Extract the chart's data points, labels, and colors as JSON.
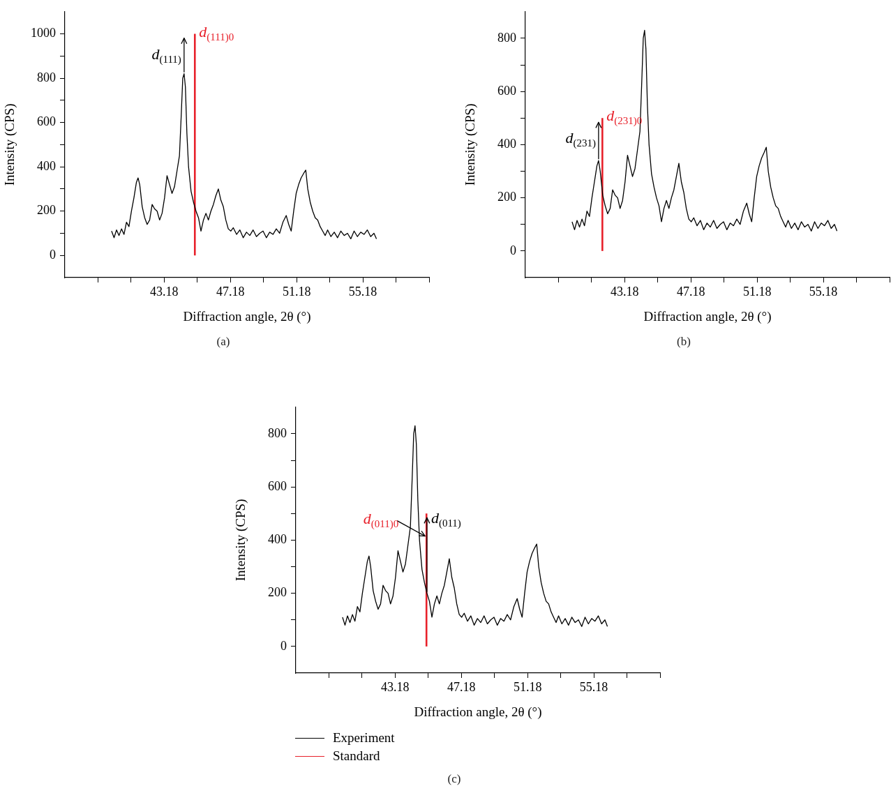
{
  "chart_data": [
    {
      "type": "line",
      "title": "(a)",
      "xlabel": "Diffraction angle, 2θ (°)",
      "ylabel": "Intensity (CPS)",
      "xlim": [
        37.18,
        59.18
      ],
      "ylim": [
        -100,
        1100
      ],
      "xticks": [
        {
          "value": 39.18,
          "label": null
        },
        {
          "value": 41.18,
          "label": null
        },
        43.18,
        {
          "value": 45.18,
          "label": null
        },
        47.18,
        {
          "value": 49.18,
          "label": null
        },
        51.18,
        {
          "value": 53.18,
          "label": null
        },
        55.18,
        {
          "value": 57.18,
          "label": null
        },
        {
          "value": 59.18,
          "label": null
        }
      ],
      "yticks": [
        0,
        {
          "value": 100,
          "label": null
        },
        200,
        {
          "value": 300,
          "label": null
        },
        400,
        {
          "value": 500,
          "label": null
        },
        600,
        {
          "value": 700,
          "label": null
        },
        800,
        {
          "value": 900,
          "label": null
        },
        1000
      ],
      "grid": false,
      "legend": false,
      "series": [
        {
          "color": "#000000",
          "x": [
            40.0,
            40.15,
            40.3,
            40.45,
            40.6,
            40.75,
            40.9,
            41.05,
            41.2,
            41.35,
            41.5,
            41.6,
            41.7,
            41.85,
            42.0,
            42.15,
            42.3,
            42.45,
            42.6,
            42.75,
            42.9,
            43.05,
            43.2,
            43.35,
            43.5,
            43.65,
            43.8,
            43.95,
            44.1,
            44.2,
            44.3,
            44.38,
            44.46,
            44.55,
            44.65,
            44.8,
            44.95,
            45.1,
            45.25,
            45.4,
            45.55,
            45.7,
            45.85,
            46.0,
            46.15,
            46.3,
            46.45,
            46.6,
            46.75,
            46.9,
            47.05,
            47.2,
            47.35,
            47.55,
            47.75,
            47.95,
            48.15,
            48.35,
            48.55,
            48.75,
            48.95,
            49.15,
            49.35,
            49.55,
            49.75,
            49.95,
            50.15,
            50.35,
            50.55,
            50.7,
            50.85,
            51.0,
            51.15,
            51.3,
            51.45,
            51.6,
            51.73,
            51.85,
            52.0,
            52.15,
            52.3,
            52.45,
            52.6,
            52.75,
            52.9,
            53.05,
            53.25,
            53.45,
            53.65,
            53.85,
            54.05,
            54.25,
            54.45,
            54.65,
            54.85,
            55.05,
            55.25,
            55.45,
            55.65,
            55.85,
            56.0
          ],
          "values": [
            110,
            80,
            115,
            90,
            120,
            95,
            150,
            130,
            200,
            260,
            330,
            350,
            320,
            220,
            170,
            140,
            160,
            230,
            210,
            200,
            160,
            190,
            260,
            360,
            320,
            280,
            310,
            380,
            450,
            620,
            800,
            820,
            760,
            550,
            400,
            290,
            240,
            200,
            170,
            110,
            160,
            190,
            160,
            200,
            230,
            270,
            300,
            250,
            220,
            160,
            120,
            110,
            125,
            95,
            115,
            80,
            105,
            90,
            115,
            85,
            100,
            110,
            80,
            105,
            95,
            120,
            100,
            150,
            180,
            140,
            110,
            200,
            280,
            320,
            350,
            370,
            385,
            300,
            240,
            200,
            170,
            160,
            130,
            110,
            90,
            115,
            85,
            105,
            80,
            110,
            90,
            100,
            75,
            110,
            85,
            105,
            95,
            115,
            85,
            100,
            75
          ]
        },
        {
          "color": "#e8202a",
          "x": [
            45.03,
            45.03
          ],
          "values": [
            0,
            1000
          ]
        }
      ],
      "annotations": [
        {
          "text": "d$_{(111)}$",
          "x": 44.38,
          "y": 820
        },
        {
          "text": "d$_{(111)0}$",
          "x": 45.03,
          "y": 1000
        }
      ]
    },
    {
      "type": "line",
      "title": "(b)",
      "xlabel": "Diffraction angle, 2θ (°)",
      "ylabel": "Intensity (CPS)",
      "xlim": [
        37.18,
        59.18
      ],
      "ylim": [
        -100,
        900
      ],
      "xticks": [
        {
          "value": 39.18,
          "label": null
        },
        {
          "value": 41.18,
          "label": null
        },
        43.18,
        {
          "value": 45.18,
          "label": null
        },
        47.18,
        {
          "value": 49.18,
          "label": null
        },
        51.18,
        {
          "value": 53.18,
          "label": null
        },
        55.18,
        {
          "value": 57.18,
          "label": null
        },
        {
          "value": 59.18,
          "label": null
        }
      ],
      "yticks": [
        0,
        {
          "value": 100,
          "label": null
        },
        200,
        {
          "value": 300,
          "label": null
        },
        400,
        {
          "value": 500,
          "label": null
        },
        600,
        {
          "value": 700,
          "label": null
        },
        800
      ],
      "grid": false,
      "legend": false,
      "series": [
        {
          "color": "#000000",
          "x": [
            40.0,
            40.15,
            40.3,
            40.45,
            40.6,
            40.75,
            40.9,
            41.05,
            41.2,
            41.35,
            41.5,
            41.6,
            41.7,
            41.85,
            42.0,
            42.15,
            42.3,
            42.45,
            42.6,
            42.75,
            42.9,
            43.05,
            43.2,
            43.35,
            43.5,
            43.65,
            43.8,
            43.95,
            44.1,
            44.2,
            44.3,
            44.38,
            44.46,
            44.55,
            44.65,
            44.8,
            44.95,
            45.1,
            45.25,
            45.4,
            45.55,
            45.7,
            45.85,
            46.0,
            46.15,
            46.3,
            46.45,
            46.6,
            46.75,
            46.9,
            47.05,
            47.2,
            47.35,
            47.55,
            47.75,
            47.95,
            48.15,
            48.35,
            48.55,
            48.75,
            48.95,
            49.15,
            49.35,
            49.55,
            49.75,
            49.95,
            50.15,
            50.35,
            50.55,
            50.7,
            50.85,
            51.0,
            51.15,
            51.3,
            51.45,
            51.6,
            51.73,
            51.85,
            52.0,
            52.15,
            52.3,
            52.45,
            52.6,
            52.75,
            52.9,
            53.05,
            53.25,
            53.45,
            53.65,
            53.85,
            54.05,
            54.25,
            54.45,
            54.65,
            54.85,
            55.05,
            55.25,
            55.45,
            55.65,
            55.85,
            56.0
          ],
          "values": [
            110,
            80,
            115,
            90,
            120,
            95,
            150,
            130,
            200,
            260,
            320,
            340,
            300,
            210,
            170,
            140,
            160,
            230,
            210,
            200,
            160,
            190,
            260,
            360,
            320,
            280,
            310,
            380,
            450,
            620,
            800,
            830,
            760,
            550,
            400,
            290,
            240,
            200,
            170,
            110,
            160,
            190,
            160,
            200,
            230,
            280,
            330,
            260,
            220,
            160,
            120,
            110,
            125,
            95,
            115,
            80,
            105,
            90,
            115,
            85,
            100,
            110,
            80,
            105,
            95,
            120,
            100,
            150,
            180,
            140,
            110,
            200,
            280,
            320,
            350,
            370,
            390,
            300,
            240,
            200,
            170,
            160,
            130,
            110,
            90,
            115,
            85,
            105,
            80,
            110,
            90,
            100,
            75,
            110,
            85,
            105,
            95,
            115,
            85,
            100,
            75
          ]
        },
        {
          "color": "#e8202a",
          "x": [
            41.83,
            41.83
          ],
          "values": [
            0,
            500
          ]
        }
      ],
      "annotations": [
        {
          "text": "d$_{(231)}$",
          "x": 41.6,
          "y": 340
        },
        {
          "text": "d$_{(231)0}$",
          "x": 41.83,
          "y": 500
        }
      ]
    },
    {
      "type": "line",
      "title": "(c)",
      "xlabel": "Diffraction angle, 2θ (°)",
      "ylabel": "Intensity (CPS)",
      "xlim": [
        37.18,
        59.18
      ],
      "ylim": [
        -100,
        900
      ],
      "xticks": [
        {
          "value": 39.18,
          "label": null
        },
        {
          "value": 41.18,
          "label": null
        },
        43.18,
        {
          "value": 45.18,
          "label": null
        },
        47.18,
        {
          "value": 49.18,
          "label": null
        },
        51.18,
        {
          "value": 53.18,
          "label": null
        },
        55.18,
        {
          "value": 57.18,
          "label": null
        },
        {
          "value": 59.18,
          "label": null
        }
      ],
      "yticks": [
        0,
        {
          "value": 100,
          "label": null
        },
        200,
        {
          "value": 300,
          "label": null
        },
        400,
        {
          "value": 500,
          "label": null
        },
        600,
        {
          "value": 700,
          "label": null
        },
        800
      ],
      "grid": false,
      "legend": "bottom",
      "series": [
        {
          "name": "Experiment",
          "color": "#000000",
          "x": [
            40.0,
            40.15,
            40.3,
            40.45,
            40.6,
            40.75,
            40.9,
            41.05,
            41.2,
            41.35,
            41.5,
            41.6,
            41.7,
            41.85,
            42.0,
            42.15,
            42.3,
            42.45,
            42.6,
            42.75,
            42.9,
            43.05,
            43.2,
            43.35,
            43.5,
            43.65,
            43.8,
            43.95,
            44.1,
            44.2,
            44.3,
            44.38,
            44.46,
            44.55,
            44.65,
            44.8,
            44.95,
            45.1,
            45.25,
            45.4,
            45.55,
            45.7,
            45.85,
            46.0,
            46.15,
            46.3,
            46.45,
            46.6,
            46.75,
            46.9,
            47.05,
            47.2,
            47.35,
            47.55,
            47.75,
            47.95,
            48.15,
            48.35,
            48.55,
            48.75,
            48.95,
            49.15,
            49.35,
            49.55,
            49.75,
            49.95,
            50.15,
            50.35,
            50.55,
            50.7,
            50.85,
            51.0,
            51.15,
            51.3,
            51.45,
            51.6,
            51.73,
            51.85,
            52.0,
            52.15,
            52.3,
            52.45,
            52.6,
            52.75,
            52.9,
            53.05,
            53.25,
            53.45,
            53.65,
            53.85,
            54.05,
            54.25,
            54.45,
            54.65,
            54.85,
            55.05,
            55.25,
            55.45,
            55.65,
            55.85,
            56.0
          ],
          "values": [
            110,
            80,
            115,
            90,
            120,
            95,
            150,
            130,
            200,
            260,
            320,
            340,
            300,
            210,
            170,
            140,
            160,
            230,
            210,
            200,
            160,
            190,
            260,
            360,
            320,
            280,
            310,
            380,
            450,
            620,
            800,
            830,
            760,
            550,
            400,
            290,
            240,
            200,
            170,
            110,
            160,
            190,
            160,
            200,
            230,
            280,
            330,
            260,
            220,
            160,
            120,
            110,
            125,
            95,
            115,
            80,
            105,
            90,
            115,
            85,
            100,
            110,
            80,
            105,
            95,
            120,
            100,
            150,
            180,
            140,
            110,
            200,
            280,
            320,
            350,
            370,
            385,
            300,
            240,
            200,
            170,
            160,
            130,
            110,
            90,
            115,
            85,
            105,
            80,
            110,
            90,
            100,
            75,
            110,
            85,
            105,
            95,
            115,
            85,
            100,
            75
          ]
        },
        {
          "name": "Standard",
          "color": "#e8202a",
          "x": [
            45.07,
            45.07
          ],
          "values": [
            0,
            500
          ]
        }
      ],
      "annotations": [
        {
          "text": "d$_{(011)}$",
          "x": 45.1,
          "y": 200
        },
        {
          "text": "d$_{(011)0}$",
          "x": 45.07,
          "y": 415
        }
      ]
    }
  ]
}
